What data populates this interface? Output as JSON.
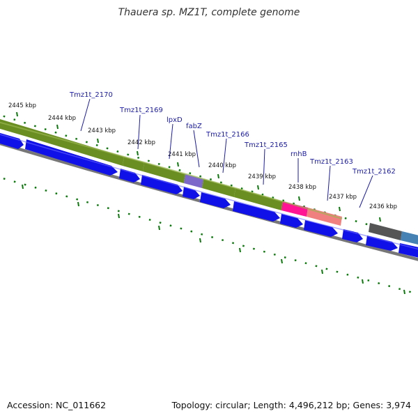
{
  "title": "Thauera sp. MZ1T, complete genome",
  "footer": {
    "accession": "Accession: NC_011662",
    "summary": "Topology: circular; Length: 4,496,212 bp; Genes: 3,974"
  },
  "colors": {
    "cds_strand": "#1010e8",
    "gene_track": "#6b8e23",
    "fabZ_gene": "#7b68c8",
    "rnhB_gene": "#ff1493",
    "pink_gene": "#f08080",
    "gray_gene": "#555555",
    "steelblue_gene": "#4682b4",
    "tick": "#0a7a0a",
    "backbone": "#777777",
    "label": "#1a1aa6"
  },
  "ticks": [
    {
      "label": "2445 kbp"
    },
    {
      "label": "2444 kbp"
    },
    {
      "label": "2443 kbp"
    },
    {
      "label": "2442 kbp"
    },
    {
      "label": "2441 kbp"
    },
    {
      "label": "2440 kbp"
    },
    {
      "label": "2439 kbp"
    },
    {
      "label": "2438 kbp"
    },
    {
      "label": "2437 kbp"
    },
    {
      "label": "2436 kbp"
    }
  ],
  "genes": [
    {
      "label": "Tmz1t_2170"
    },
    {
      "label": "Tmz1t_2169"
    },
    {
      "label": "lpxD"
    },
    {
      "label": "fabZ"
    },
    {
      "label": "Tmz1t_2166"
    },
    {
      "label": "Tmz1t_2165"
    },
    {
      "label": "rnhB"
    },
    {
      "label": "Tmz1t_2163"
    },
    {
      "label": "Tmz1t_2162"
    }
  ]
}
